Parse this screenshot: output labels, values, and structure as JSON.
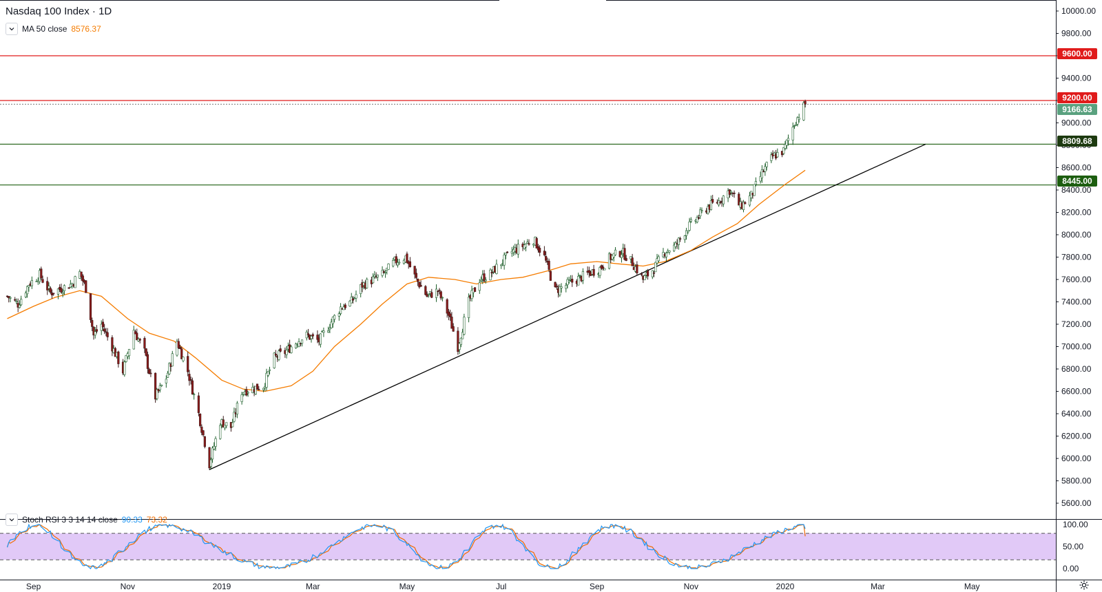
{
  "header": {
    "title": "Nasdaq 100 Index · 1D",
    "ma_label": "MA 50 close",
    "ma_value": "8576.37"
  },
  "indicator": {
    "label": "Stoch RSI 3 3 14 14 close",
    "k_value": "90.33",
    "d_value": "73.32"
  },
  "price_tags": {
    "level_high": "9600.00",
    "level_resistance": "9200.00",
    "last_price": "9166.63",
    "level_support_1": "8809.68",
    "level_support_2": "8445.00"
  },
  "colors": {
    "up_candle": "#26a69a",
    "up_candle_body": "#1e5f2b",
    "down_candle": "#8b1a1a",
    "ma_line": "#f57c00",
    "resistance": "#e01b1b",
    "support": "#1d5e10",
    "last_price": "#5aa17f",
    "stoch_k": "#2196f3",
    "stoch_d": "#ef6c00",
    "stoch_band": "#e1c9f7",
    "trendline": "#000000"
  },
  "chart_data": {
    "type": "candlestick",
    "title": "Nasdaq 100 Index · 1D",
    "y_axis": {
      "min": 5500,
      "max": 10000,
      "ticks": [
        "10000.00",
        "9800.00",
        "9600.00",
        "9400.00",
        "9200.00",
        "9000.00",
        "8800.00",
        "8600.00",
        "8400.00",
        "8200.00",
        "8000.00",
        "7800.00",
        "7600.00",
        "7400.00",
        "7200.00",
        "7000.00",
        "6800.00",
        "6600.00",
        "6400.00",
        "6200.00",
        "6000.00",
        "5800.00",
        "5600.00"
      ]
    },
    "x_axis": {
      "ticks": [
        "Sep",
        "Nov",
        "2019",
        "Mar",
        "May",
        "Jul",
        "Sep",
        "Nov",
        "2020",
        "Mar",
        "May"
      ]
    },
    "close_path": [
      {
        "date": "2018-08-15",
        "close": 7450
      },
      {
        "date": "2018-08-22",
        "close": 7380
      },
      {
        "date": "2018-08-29",
        "close": 7560
      },
      {
        "date": "2018-09-05",
        "close": 7640
      },
      {
        "date": "2018-09-12",
        "close": 7480
      },
      {
        "date": "2018-09-19",
        "close": 7520
      },
      {
        "date": "2018-09-26",
        "close": 7560
      },
      {
        "date": "2018-10-01",
        "close": 7660
      },
      {
        "date": "2018-10-05",
        "close": 7520
      },
      {
        "date": "2018-10-10",
        "close": 7100
      },
      {
        "date": "2018-10-15",
        "close": 7200
      },
      {
        "date": "2018-10-22",
        "close": 7000
      },
      {
        "date": "2018-10-29",
        "close": 6780
      },
      {
        "date": "2018-11-05",
        "close": 7150
      },
      {
        "date": "2018-11-12",
        "close": 6950
      },
      {
        "date": "2018-11-19",
        "close": 6550
      },
      {
        "date": "2018-11-26",
        "close": 6720
      },
      {
        "date": "2018-12-03",
        "close": 7050
      },
      {
        "date": "2018-12-10",
        "close": 6780
      },
      {
        "date": "2018-12-17",
        "close": 6400
      },
      {
        "date": "2018-12-24",
        "close": 5950
      },
      {
        "date": "2018-12-31",
        "close": 6330
      },
      {
        "date": "2019-01-07",
        "close": 6280
      },
      {
        "date": "2019-01-14",
        "close": 6600
      },
      {
        "date": "2019-01-28",
        "close": 6650
      },
      {
        "date": "2019-02-04",
        "close": 6900
      },
      {
        "date": "2019-02-11",
        "close": 6950
      },
      {
        "date": "2019-02-19",
        "close": 7050
      },
      {
        "date": "2019-02-25",
        "close": 7100
      },
      {
        "date": "2019-03-05",
        "close": 7050
      },
      {
        "date": "2019-03-12",
        "close": 7200
      },
      {
        "date": "2019-03-19",
        "close": 7350
      },
      {
        "date": "2019-03-26",
        "close": 7400
      },
      {
        "date": "2019-04-02",
        "close": 7550
      },
      {
        "date": "2019-04-09",
        "close": 7600
      },
      {
        "date": "2019-04-16",
        "close": 7650
      },
      {
        "date": "2019-04-23",
        "close": 7760
      },
      {
        "date": "2019-04-30",
        "close": 7800
      },
      {
        "date": "2019-05-07",
        "close": 7600
      },
      {
        "date": "2019-05-14",
        "close": 7450
      },
      {
        "date": "2019-05-21",
        "close": 7500
      },
      {
        "date": "2019-05-28",
        "close": 7280
      },
      {
        "date": "2019-06-03",
        "close": 7000
      },
      {
        "date": "2019-06-10",
        "close": 7400
      },
      {
        "date": "2019-06-17",
        "close": 7600
      },
      {
        "date": "2019-06-24",
        "close": 7650
      },
      {
        "date": "2019-07-01",
        "close": 7750
      },
      {
        "date": "2019-07-08",
        "close": 7850
      },
      {
        "date": "2019-07-15",
        "close": 7900
      },
      {
        "date": "2019-07-22",
        "close": 7960
      },
      {
        "date": "2019-07-29",
        "close": 7800
      },
      {
        "date": "2019-08-05",
        "close": 7500
      },
      {
        "date": "2019-08-12",
        "close": 7550
      },
      {
        "date": "2019-08-19",
        "close": 7600
      },
      {
        "date": "2019-08-26",
        "close": 7650
      },
      {
        "date": "2019-09-03",
        "close": 7700
      },
      {
        "date": "2019-09-10",
        "close": 7800
      },
      {
        "date": "2019-09-17",
        "close": 7850
      },
      {
        "date": "2019-09-24",
        "close": 7750
      },
      {
        "date": "2019-10-01",
        "close": 7600
      },
      {
        "date": "2019-10-08",
        "close": 7700
      },
      {
        "date": "2019-10-15",
        "close": 7850
      },
      {
        "date": "2019-10-22",
        "close": 7900
      },
      {
        "date": "2019-10-29",
        "close": 8050
      },
      {
        "date": "2019-11-05",
        "close": 8150
      },
      {
        "date": "2019-11-12",
        "close": 8250
      },
      {
        "date": "2019-11-19",
        "close": 8300
      },
      {
        "date": "2019-11-26",
        "close": 8400
      },
      {
        "date": "2019-12-03",
        "close": 8250
      },
      {
        "date": "2019-12-10",
        "close": 8350
      },
      {
        "date": "2019-12-17",
        "close": 8550
      },
      {
        "date": "2019-12-24",
        "close": 8700
      },
      {
        "date": "2019-12-31",
        "close": 8750
      },
      {
        "date": "2020-01-07",
        "close": 9000
      },
      {
        "date": "2020-01-14",
        "close": 9166.63
      }
    ],
    "ma50_path": [
      {
        "date": "2018-08-15",
        "close": 7250
      },
      {
        "date": "2018-09-01",
        "close": 7360
      },
      {
        "date": "2018-09-15",
        "close": 7440
      },
      {
        "date": "2018-10-01",
        "close": 7500
      },
      {
        "date": "2018-10-15",
        "close": 7450
      },
      {
        "date": "2018-11-01",
        "close": 7250
      },
      {
        "date": "2018-11-15",
        "close": 7120
      },
      {
        "date": "2018-12-01",
        "close": 7050
      },
      {
        "date": "2018-12-15",
        "close": 6900
      },
      {
        "date": "2019-01-01",
        "close": 6700
      },
      {
        "date": "2019-01-15",
        "close": 6620
      },
      {
        "date": "2019-01-29",
        "close": 6600
      },
      {
        "date": "2019-02-15",
        "close": 6650
      },
      {
        "date": "2019-03-01",
        "close": 6780
      },
      {
        "date": "2019-03-15",
        "close": 7000
      },
      {
        "date": "2019-04-01",
        "close": 7200
      },
      {
        "date": "2019-04-15",
        "close": 7380
      },
      {
        "date": "2019-05-01",
        "close": 7560
      },
      {
        "date": "2019-05-15",
        "close": 7620
      },
      {
        "date": "2019-06-01",
        "close": 7600
      },
      {
        "date": "2019-06-15",
        "close": 7560
      },
      {
        "date": "2019-07-01",
        "close": 7600
      },
      {
        "date": "2019-07-15",
        "close": 7620
      },
      {
        "date": "2019-08-01",
        "close": 7680
      },
      {
        "date": "2019-08-15",
        "close": 7740
      },
      {
        "date": "2019-09-01",
        "close": 7760
      },
      {
        "date": "2019-09-15",
        "close": 7740
      },
      {
        "date": "2019-10-01",
        "close": 7720
      },
      {
        "date": "2019-10-15",
        "close": 7760
      },
      {
        "date": "2019-11-01",
        "close": 7860
      },
      {
        "date": "2019-11-15",
        "close": 7980
      },
      {
        "date": "2019-12-01",
        "close": 8100
      },
      {
        "date": "2019-12-15",
        "close": 8270
      },
      {
        "date": "2020-01-01",
        "close": 8450
      },
      {
        "date": "2020-01-14",
        "close": 8576.37
      }
    ],
    "horizontal_levels": [
      {
        "value": 9600,
        "style": "resistance"
      },
      {
        "value": 9200,
        "style": "resistance"
      },
      {
        "value": 8809.68,
        "style": "support"
      },
      {
        "value": 8445,
        "style": "support"
      }
    ],
    "trendline": {
      "start": {
        "date": "2018-12-24",
        "close": 5900
      },
      "end": {
        "date": "2020-04-01",
        "close": 8809.68
      }
    },
    "last_price_line": 9166.63,
    "stoch_rsi": {
      "ylim": [
        0,
        100
      ],
      "ticks": [
        "100.00",
        "50.00",
        "0.00"
      ],
      "bands": [
        20,
        80
      ],
      "k_last": 90.33,
      "d_last": 73.32
    }
  }
}
